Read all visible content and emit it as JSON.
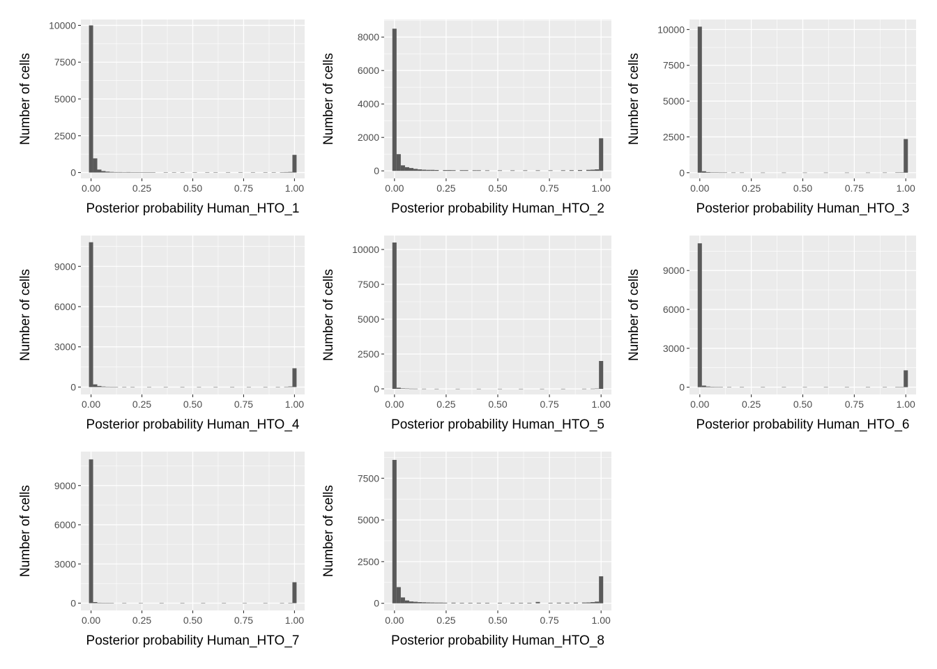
{
  "chart_data": [
    {
      "type": "bar",
      "xlabel": "Posterior probability Human_HTO_1",
      "ylabel": "Number of cells",
      "xlim": [
        -0.05,
        1.05
      ],
      "ylim": [
        -400,
        10400
      ],
      "xticks": [
        0,
        0.25,
        0.5,
        0.75,
        1
      ],
      "xtick_labels": [
        "0.00",
        "0.25",
        "0.50",
        "0.75",
        "1.00"
      ],
      "yticks": [
        0,
        2500,
        5000,
        7500,
        10000
      ],
      "ytick_labels": [
        "0",
        "2500",
        "5000",
        "7500",
        "10000"
      ],
      "bin_width": 0.0204,
      "bins": [
        [
          0,
          10000
        ],
        [
          0.0204,
          960
        ],
        [
          0.0408,
          200
        ],
        [
          0.0612,
          100
        ],
        [
          0.0816,
          60
        ],
        [
          0.102,
          40
        ],
        [
          0.1224,
          30
        ],
        [
          0.1429,
          30
        ],
        [
          0.1633,
          20
        ],
        [
          0.1837,
          30
        ],
        [
          0.2041,
          20
        ],
        [
          0.2245,
          15
        ],
        [
          0.2449,
          10
        ],
        [
          0.2653,
          10
        ],
        [
          0.2857,
          10
        ],
        [
          0.3061,
          8
        ],
        [
          0.3673,
          8
        ],
        [
          0.4082,
          8
        ],
        [
          0.449,
          8
        ],
        [
          0.5102,
          8
        ],
        [
          0.5714,
          8
        ],
        [
          0.6122,
          10
        ],
        [
          0.6735,
          8
        ],
        [
          0.7347,
          8
        ],
        [
          0.7959,
          8
        ],
        [
          0.8571,
          10
        ],
        [
          0.898,
          15
        ],
        [
          0.9388,
          20
        ],
        [
          0.9592,
          30
        ],
        [
          0.9796,
          40
        ],
        [
          1.0,
          1200
        ]
      ]
    },
    {
      "type": "bar",
      "xlabel": "Posterior probability Human_HTO_2",
      "ylabel": "Number of cells",
      "xlim": [
        -0.05,
        1.05
      ],
      "ylim": [
        -450,
        9050
      ],
      "xticks": [
        0,
        0.25,
        0.5,
        0.75,
        1
      ],
      "xtick_labels": [
        "0.00",
        "0.25",
        "0.50",
        "0.75",
        "1.00"
      ],
      "yticks": [
        0,
        2000,
        4000,
        6000,
        8000
      ],
      "ytick_labels": [
        "0",
        "2000",
        "4000",
        "6000",
        "8000"
      ],
      "bin_width": 0.0204,
      "bins": [
        [
          0,
          8500
        ],
        [
          0.0204,
          1000
        ],
        [
          0.0408,
          330
        ],
        [
          0.0612,
          220
        ],
        [
          0.0816,
          170
        ],
        [
          0.102,
          120
        ],
        [
          0.1224,
          90
        ],
        [
          0.1429,
          70
        ],
        [
          0.1633,
          60
        ],
        [
          0.1837,
          60
        ],
        [
          0.2041,
          50
        ],
        [
          0.2449,
          45
        ],
        [
          0.2653,
          45
        ],
        [
          0.2857,
          40
        ],
        [
          0.3265,
          40
        ],
        [
          0.3469,
          40
        ],
        [
          0.3878,
          35
        ],
        [
          0.4082,
          35
        ],
        [
          0.449,
          30
        ],
        [
          0.5102,
          30
        ],
        [
          0.5714,
          30
        ],
        [
          0.6327,
          30
        ],
        [
          0.6939,
          30
        ],
        [
          0.7551,
          30
        ],
        [
          0.8163,
          35
        ],
        [
          0.8571,
          40
        ],
        [
          0.898,
          50
        ],
        [
          0.9388,
          60
        ],
        [
          0.9592,
          70
        ],
        [
          0.9796,
          90
        ],
        [
          1.0,
          1950
        ]
      ]
    },
    {
      "type": "bar",
      "xlabel": "Posterior probability Human_HTO_3",
      "ylabel": "Number of cells",
      "xlim": [
        -0.05,
        1.05
      ],
      "ylim": [
        -400,
        10700
      ],
      "xticks": [
        0,
        0.25,
        0.5,
        0.75,
        1
      ],
      "xtick_labels": [
        "0.00",
        "0.25",
        "0.50",
        "0.75",
        "1.00"
      ],
      "yticks": [
        0,
        2500,
        5000,
        7500,
        10000
      ],
      "ytick_labels": [
        "0",
        "2500",
        "5000",
        "7500",
        "10000"
      ],
      "bin_width": 0.0204,
      "bins": [
        [
          0,
          10200
        ],
        [
          0.0204,
          100
        ],
        [
          0.0408,
          40
        ],
        [
          0.0612,
          25
        ],
        [
          0.0816,
          15
        ],
        [
          0.102,
          10
        ],
        [
          0.1224,
          10
        ],
        [
          0.1633,
          8
        ],
        [
          0.2041,
          8
        ],
        [
          0.3061,
          6
        ],
        [
          0.4082,
          6
        ],
        [
          0.5102,
          6
        ],
        [
          0.6122,
          6
        ],
        [
          0.7143,
          6
        ],
        [
          0.8163,
          6
        ],
        [
          0.898,
          8
        ],
        [
          0.9592,
          12
        ],
        [
          0.9796,
          20
        ],
        [
          1.0,
          2350
        ]
      ]
    },
    {
      "type": "bar",
      "xlabel": "Posterior probability Human_HTO_4",
      "ylabel": "Number of cells",
      "xlim": [
        -0.05,
        1.05
      ],
      "ylim": [
        -550,
        11300
      ],
      "xticks": [
        0,
        0.25,
        0.5,
        0.75,
        1
      ],
      "xtick_labels": [
        "0.00",
        "0.25",
        "0.50",
        "0.75",
        "1.00"
      ],
      "yticks": [
        0,
        3000,
        6000,
        9000
      ],
      "ytick_labels": [
        "0",
        "3000",
        "6000",
        "9000"
      ],
      "bin_width": 0.0204,
      "bins": [
        [
          0,
          10800
        ],
        [
          0.0204,
          200
        ],
        [
          0.0408,
          80
        ],
        [
          0.0612,
          40
        ],
        [
          0.0816,
          25
        ],
        [
          0.102,
          20
        ],
        [
          0.1224,
          15
        ],
        [
          0.1633,
          12
        ],
        [
          0.2041,
          10
        ],
        [
          0.2857,
          8
        ],
        [
          0.3673,
          8
        ],
        [
          0.449,
          8
        ],
        [
          0.5306,
          8
        ],
        [
          0.6122,
          8
        ],
        [
          0.6939,
          8
        ],
        [
          0.7755,
          8
        ],
        [
          0.8571,
          10
        ],
        [
          0.9184,
          15
        ],
        [
          0.9592,
          25
        ],
        [
          0.9796,
          40
        ],
        [
          1.0,
          1400
        ]
      ]
    },
    {
      "type": "bar",
      "xlabel": "Posterior probability Human_HTO_5",
      "ylabel": "Number of cells",
      "xlim": [
        -0.05,
        1.05
      ],
      "ylim": [
        -400,
        11000
      ],
      "xticks": [
        0,
        0.25,
        0.5,
        0.75,
        1
      ],
      "xtick_labels": [
        "0.00",
        "0.25",
        "0.50",
        "0.75",
        "1.00"
      ],
      "yticks": [
        0,
        2500,
        5000,
        7500,
        10000
      ],
      "ytick_labels": [
        "0",
        "2500",
        "5000",
        "7500",
        "10000"
      ],
      "bin_width": 0.0204,
      "bins": [
        [
          0,
          10500
        ],
        [
          0.0204,
          80
        ],
        [
          0.0408,
          30
        ],
        [
          0.0612,
          20
        ],
        [
          0.0816,
          12
        ],
        [
          0.102,
          10
        ],
        [
          0.1429,
          8
        ],
        [
          0.2041,
          6
        ],
        [
          0.3061,
          6
        ],
        [
          0.4082,
          6
        ],
        [
          0.5102,
          6
        ],
        [
          0.6122,
          6
        ],
        [
          0.7143,
          6
        ],
        [
          0.8163,
          6
        ],
        [
          0.9184,
          8
        ],
        [
          0.9592,
          12
        ],
        [
          0.9796,
          20
        ],
        [
          1.0,
          2000
        ]
      ]
    },
    {
      "type": "bar",
      "xlabel": "Posterior probability Human_HTO_6",
      "ylabel": "Number of cells",
      "xlim": [
        -0.05,
        1.05
      ],
      "ylim": [
        -560,
        11700
      ],
      "xticks": [
        0,
        0.25,
        0.5,
        0.75,
        1
      ],
      "xtick_labels": [
        "0.00",
        "0.25",
        "0.50",
        "0.75",
        "1.00"
      ],
      "yticks": [
        0,
        3000,
        6000,
        9000
      ],
      "ytick_labels": [
        "0",
        "3000",
        "6000",
        "9000"
      ],
      "bin_width": 0.0204,
      "bins": [
        [
          0,
          11100
        ],
        [
          0.0204,
          120
        ],
        [
          0.0408,
          50
        ],
        [
          0.0612,
          30
        ],
        [
          0.0816,
          20
        ],
        [
          0.102,
          15
        ],
        [
          0.1429,
          10
        ],
        [
          0.2041,
          8
        ],
        [
          0.3061,
          6
        ],
        [
          0.4082,
          6
        ],
        [
          0.5102,
          6
        ],
        [
          0.6122,
          6
        ],
        [
          0.7143,
          6
        ],
        [
          0.8163,
          6
        ],
        [
          0.898,
          8
        ],
        [
          0.9592,
          15
        ],
        [
          0.9796,
          25
        ],
        [
          1.0,
          1300
        ]
      ]
    },
    {
      "type": "bar",
      "xlabel": "Posterior probability Human_HTO_7",
      "ylabel": "Number of cells",
      "xlim": [
        -0.05,
        1.05
      ],
      "ylim": [
        -560,
        11600
      ],
      "xticks": [
        0,
        0.25,
        0.5,
        0.75,
        1
      ],
      "xtick_labels": [
        "0.00",
        "0.25",
        "0.50",
        "0.75",
        "1.00"
      ],
      "yticks": [
        0,
        3000,
        6000,
        9000
      ],
      "ytick_labels": [
        "0",
        "3000",
        "6000",
        "9000"
      ],
      "bin_width": 0.0204,
      "bins": [
        [
          0,
          11000
        ],
        [
          0.0204,
          80
        ],
        [
          0.0408,
          30
        ],
        [
          0.0612,
          20
        ],
        [
          0.0816,
          12
        ],
        [
          0.102,
          10
        ],
        [
          0.1633,
          8
        ],
        [
          0.2449,
          6
        ],
        [
          0.3469,
          6
        ],
        [
          0.449,
          6
        ],
        [
          0.551,
          6
        ],
        [
          0.6531,
          6
        ],
        [
          0.7551,
          6
        ],
        [
          0.8571,
          8
        ],
        [
          0.9388,
          10
        ],
        [
          0.9796,
          20
        ],
        [
          1.0,
          1600
        ]
      ]
    },
    {
      "type": "bar",
      "xlabel": "Posterior probability Human_HTO_8",
      "ylabel": "Number of cells",
      "xlim": [
        -0.05,
        1.05
      ],
      "ylim": [
        -430,
        9100
      ],
      "xticks": [
        0,
        0.25,
        0.5,
        0.75,
        1
      ],
      "xtick_labels": [
        "0.00",
        "0.25",
        "0.50",
        "0.75",
        "1.00"
      ],
      "yticks": [
        0,
        2500,
        5000,
        7500
      ],
      "ytick_labels": [
        "0",
        "2500",
        "5000",
        "7500"
      ],
      "bin_width": 0.0204,
      "bins": [
        [
          0,
          8600
        ],
        [
          0.0204,
          970
        ],
        [
          0.0408,
          350
        ],
        [
          0.0612,
          170
        ],
        [
          0.0816,
          110
        ],
        [
          0.102,
          90
        ],
        [
          0.1224,
          70
        ],
        [
          0.1429,
          60
        ],
        [
          0.1633,
          50
        ],
        [
          0.1837,
          45
        ],
        [
          0.2041,
          40
        ],
        [
          0.2245,
          40
        ],
        [
          0.2449,
          35
        ],
        [
          0.2857,
          35
        ],
        [
          0.3265,
          30
        ],
        [
          0.3673,
          30
        ],
        [
          0.4082,
          30
        ],
        [
          0.449,
          30
        ],
        [
          0.5102,
          30
        ],
        [
          0.5714,
          30
        ],
        [
          0.6122,
          30
        ],
        [
          0.6531,
          30
        ],
        [
          0.6939,
          80
        ],
        [
          0.7551,
          30
        ],
        [
          0.7959,
          35
        ],
        [
          0.8367,
          35
        ],
        [
          0.8776,
          40
        ],
        [
          0.918,
          45
        ],
        [
          0.9388,
          50
        ],
        [
          0.9592,
          70
        ],
        [
          0.9796,
          100
        ],
        [
          1.0,
          1620
        ]
      ]
    }
  ]
}
